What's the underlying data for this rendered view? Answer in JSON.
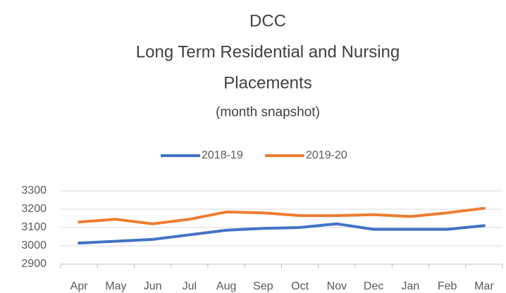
{
  "chart_data": {
    "type": "line",
    "title": [
      "DCC",
      "Long Term Residential and Nursing",
      "Placements"
    ],
    "subtitle": "(month snapshot)",
    "categories": [
      "Apr",
      "May",
      "Jun",
      "Jul",
      "Aug",
      "Sep",
      "Oct",
      "Nov",
      "Dec",
      "Jan",
      "Feb",
      "Mar"
    ],
    "series": [
      {
        "name": "2018-19",
        "color": "#4472c4",
        "values": [
          3015,
          3025,
          3035,
          3060,
          3085,
          3095,
          3100,
          3120,
          3090,
          3090,
          3090,
          3110
        ]
      },
      {
        "name": "2019-20",
        "color": "#ed7d31",
        "values": [
          3130,
          3145,
          3120,
          3145,
          3185,
          3180,
          3165,
          3165,
          3170,
          3160,
          3180,
          3205
        ]
      }
    ],
    "ylim": [
      2900,
      3300
    ],
    "yticks": [
      2900,
      3000,
      3100,
      3200,
      3300
    ],
    "grid": true,
    "legend": "top"
  }
}
